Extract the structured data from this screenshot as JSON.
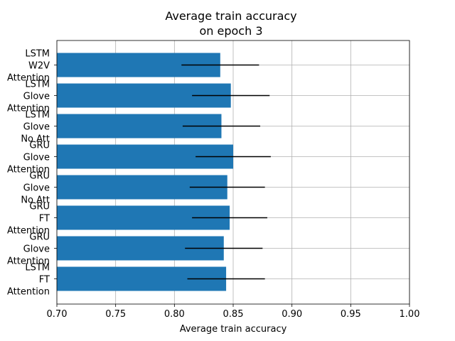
{
  "chart_data": {
    "type": "bar",
    "orientation": "horizontal",
    "title_lines": [
      "Average train accuracy",
      "on epoch 3"
    ],
    "xlabel": "Average train accuracy",
    "ylabel": "",
    "xlim": [
      0.7,
      1.0
    ],
    "xticks": [
      "0.70",
      "0.75",
      "0.80",
      "0.85",
      "0.90",
      "0.95",
      "1.00"
    ],
    "grid": true,
    "bar_color": "#1f77b4",
    "error_color": "#000000",
    "categories": [
      [
        "LSTM",
        "W2V",
        "Attention"
      ],
      [
        "LSTM",
        "Glove",
        "Attention"
      ],
      [
        "LSTM",
        "Glove",
        "No Att"
      ],
      [
        "GRU",
        "Glove",
        "Attention"
      ],
      [
        "GRU",
        "Glove",
        "No Att"
      ],
      [
        "GRU",
        "FT",
        "Attention"
      ],
      [
        "GRU",
        "Glove",
        "Attention"
      ],
      [
        "LSTM",
        "FT",
        "Attention"
      ]
    ],
    "values": [
      0.839,
      0.848,
      0.84,
      0.85,
      0.845,
      0.847,
      0.842,
      0.844
    ],
    "errors": [
      0.033,
      0.033,
      0.033,
      0.032,
      0.032,
      0.032,
      0.033,
      0.033
    ]
  }
}
